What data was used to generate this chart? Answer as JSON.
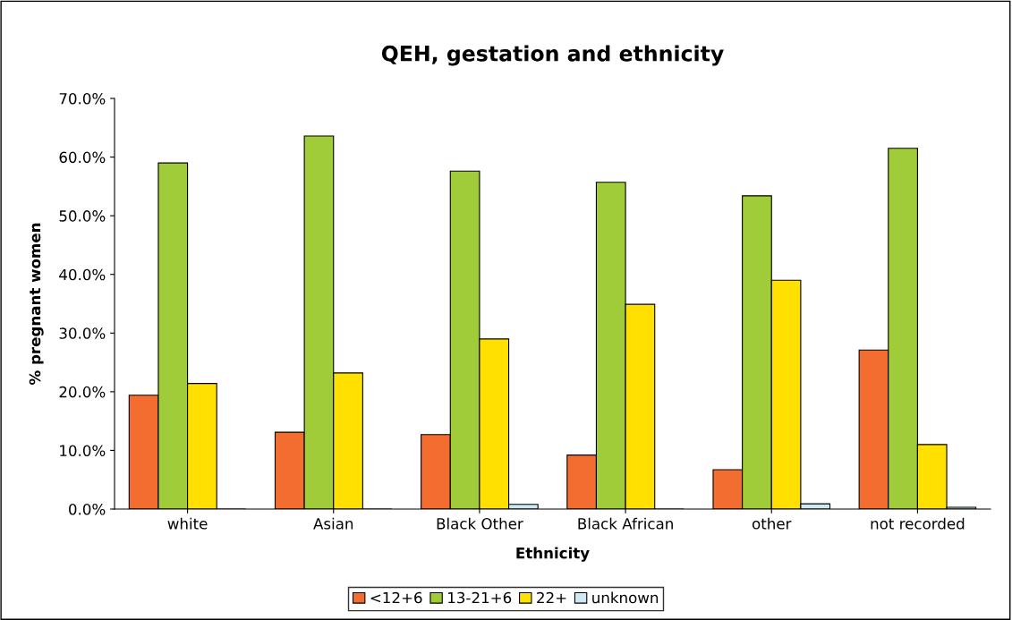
{
  "chart_data": {
    "type": "bar",
    "title": "QEH, gestation and ethnicity",
    "xlabel": "Ethnicity",
    "ylabel": "% pregnant women",
    "categories": [
      "white",
      "Asian",
      "Black Other",
      "Black African",
      "other",
      "not recorded"
    ],
    "series": [
      {
        "name": "<12+6",
        "color": "#f26d2f",
        "values": [
          19.4,
          13.1,
          12.7,
          9.2,
          6.7,
          27.1
        ]
      },
      {
        "name": "13-21+6",
        "color": "#a0cc3a",
        "values": [
          59.0,
          63.6,
          57.6,
          55.7,
          53.4,
          61.5
        ]
      },
      {
        "name": "22+",
        "color": "#ffe000",
        "values": [
          21.4,
          23.2,
          29.0,
          34.9,
          39.0,
          11.0
        ]
      },
      {
        "name": "unknown",
        "color": "#cdeaf2",
        "values": [
          null,
          0.0,
          0.8,
          null,
          0.9,
          0.3
        ]
      }
    ],
    "ylim": [
      0,
      70
    ],
    "yticks": [
      {
        "value": 0,
        "label": "0.0%"
      },
      {
        "value": 10,
        "label": "10.0%"
      },
      {
        "value": 20,
        "label": "20.0%"
      },
      {
        "value": 30,
        "label": "30.0%"
      },
      {
        "value": 40,
        "label": "40.0%"
      },
      {
        "value": 50,
        "label": "50.0%"
      },
      {
        "value": 60,
        "label": "60.0%"
      },
      {
        "value": 70,
        "label": "70.0%"
      }
    ],
    "grid": false,
    "legend": "bottom"
  }
}
